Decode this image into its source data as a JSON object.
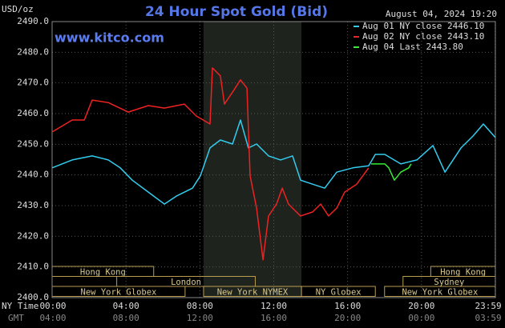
{
  "chart_data": {
    "type": "line",
    "title": "24 Hour Spot Gold (Bid)",
    "timestamp": "August 04, 2024 19:20",
    "site": "www.kitco.com",
    "ylabel": "USD/oz",
    "xlabel": "NY Time",
    "x2label": "GMT",
    "xlim": [
      0,
      24
    ],
    "xticks": [
      {
        "value": 0,
        "label": "00:00"
      },
      {
        "value": 4,
        "label": "04:00"
      },
      {
        "value": 8,
        "label": "08:00"
      },
      {
        "value": 12,
        "label": "12:00"
      },
      {
        "value": 16,
        "label": "16:00"
      },
      {
        "value": 20,
        "label": "20:00"
      },
      {
        "value": 23.983,
        "label": "23:59"
      }
    ],
    "gmt_labels": [
      "04:00",
      "08:00",
      "12:00",
      "16:00",
      "20:00",
      "00:00",
      "03:59"
    ],
    "ylim": [
      2400,
      2490
    ],
    "yticks": [
      {
        "value": 2400,
        "label": "2400.0"
      },
      {
        "value": 2410,
        "label": "2410.0"
      },
      {
        "value": 2420,
        "label": "2420.0"
      },
      {
        "value": 2430,
        "label": "2430.0"
      },
      {
        "value": 2440,
        "label": "2440.0"
      },
      {
        "value": 2450,
        "label": "2450.0"
      },
      {
        "value": 2460,
        "label": "2460.0"
      },
      {
        "value": 2470,
        "label": "2470.0"
      },
      {
        "value": 2480,
        "label": "2480.0"
      },
      {
        "value": 2490,
        "label": "2490.0"
      }
    ],
    "grid": true,
    "series": [
      {
        "name": "Aug 01 NY close 2446.10",
        "color": "#33ccee",
        "x": [
          0,
          1.09,
          2.17,
          3.04,
          3.69,
          4.34,
          5.21,
          6.08,
          6.73,
          7.6,
          8.03,
          8.55,
          9.11,
          9.77,
          10.2,
          10.63,
          11.07,
          11.72,
          12.37,
          13.02,
          13.45,
          14.1,
          14.76,
          15.41,
          16.28,
          17.14,
          17.5,
          18.01,
          18.88,
          19.75,
          20.62,
          21.27,
          22.14,
          22.79,
          23.35,
          24
        ],
        "values": [
          2442.3,
          2444.9,
          2446.2,
          2444.9,
          2442.3,
          2438.3,
          2434.4,
          2430.5,
          2433.1,
          2435.7,
          2439.7,
          2448.8,
          2451.4,
          2450.1,
          2457.9,
          2448.8,
          2450.1,
          2446.2,
          2444.9,
          2446.2,
          2438.3,
          2437.0,
          2435.7,
          2440.9,
          2442.3,
          2443.0,
          2446.7,
          2446.7,
          2443.6,
          2444.9,
          2449.6,
          2440.9,
          2448.8,
          2452.7,
          2456.6,
          2452.2
        ]
      },
      {
        "name": "Aug 02 NY close 2443.10",
        "color": "#ee2222",
        "x": [
          0,
          1.09,
          1.74,
          2.17,
          3.04,
          4.12,
          5.21,
          6.08,
          7.16,
          7.81,
          8.55,
          8.68,
          9.11,
          9.33,
          9.77,
          10.2,
          10.55,
          10.72,
          11.07,
          11.42,
          11.72,
          12.15,
          12.46,
          12.8,
          13.45,
          14.1,
          14.54,
          14.97,
          15.41,
          15.84,
          16.49,
          17.14
        ],
        "values": [
          2454.0,
          2457.9,
          2457.9,
          2464.4,
          2463.6,
          2460.5,
          2462.6,
          2461.8,
          2463.1,
          2459.2,
          2456.6,
          2474.9,
          2472.3,
          2463.1,
          2467.0,
          2471.0,
          2468.3,
          2439.7,
          2429.2,
          2412.3,
          2426.6,
          2430.5,
          2435.7,
          2430.5,
          2426.6,
          2427.9,
          2430.5,
          2426.6,
          2429.2,
          2434.4,
          2437.0,
          2442.3
        ]
      },
      {
        "name": "Aug 04 Last 2443.80",
        "color": "#33ee33",
        "x": [
          17.27,
          18.01,
          18.23,
          18.53,
          18.88,
          19.31,
          19.44
        ],
        "values": [
          2443.6,
          2443.6,
          2442.3,
          2438.3,
          2440.9,
          2442.3,
          2443.6
        ]
      }
    ],
    "sessions": [
      {
        "label": "Hong Kong",
        "start": 0,
        "end": 5.5
      },
      {
        "label": "Hong Kong",
        "start": 20.5,
        "end": 24
      },
      {
        "label": "London",
        "start": 3.5,
        "end": 11
      },
      {
        "label": "Sydney",
        "start": 19,
        "end": 24
      },
      {
        "label": "New York Globex",
        "start": 0,
        "end": 7.2
      },
      {
        "label": "New York NYMEX",
        "start": 8.2,
        "end": 13.5,
        "shade": true
      },
      {
        "label": "NY Globex",
        "start": 13.5,
        "end": 17.5
      },
      {
        "label": "New York Globex",
        "start": 18,
        "end": 24
      }
    ]
  }
}
